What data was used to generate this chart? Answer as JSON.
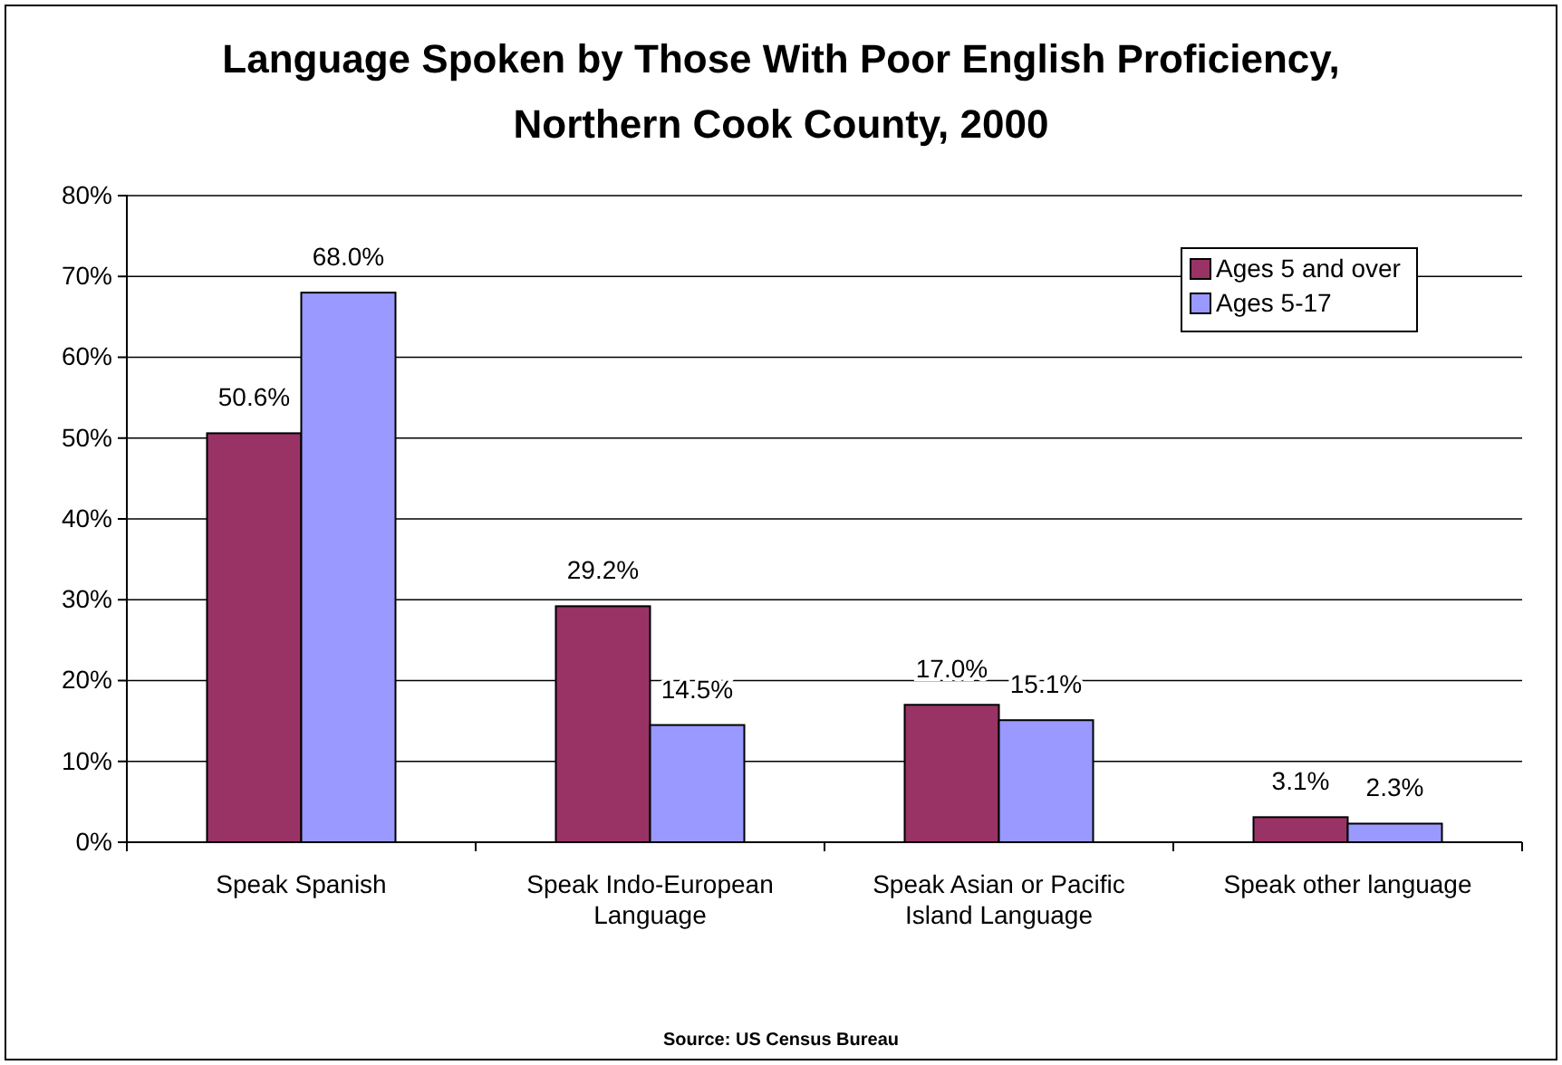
{
  "chart_data": {
    "type": "bar",
    "title": "Language Spoken by Those With Poor English Proficiency, Northern Cook County, 2000",
    "categories": [
      "Speak Spanish",
      "Speak Indo-European Language",
      "Speak Asian or Pacific Island Language",
      "Speak other language"
    ],
    "series": [
      {
        "name": "Ages 5 and over",
        "color": "#993366",
        "values": [
          50.6,
          29.2,
          17.0,
          3.1
        ],
        "value_labels": [
          "50.6%",
          "29.2%",
          "17.0%",
          "3.1%"
        ]
      },
      {
        "name": "Ages 5-17",
        "color": "#9999ff",
        "values": [
          68.0,
          14.5,
          15.1,
          2.3
        ],
        "value_labels": [
          "68.0%",
          "14.5%",
          "15.1%",
          "2.3%"
        ]
      }
    ],
    "ylim": [
      0,
      80
    ],
    "yticks": [
      {
        "value": 0,
        "label": "0%"
      },
      {
        "value": 10,
        "label": "10%"
      },
      {
        "value": 20,
        "label": "20%"
      },
      {
        "value": 30,
        "label": "30%"
      },
      {
        "value": 40,
        "label": "40%"
      },
      {
        "value": 50,
        "label": "50%"
      },
      {
        "value": 60,
        "label": "60%"
      },
      {
        "value": 70,
        "label": "70%"
      },
      {
        "value": 80,
        "label": "80%"
      }
    ],
    "grid": "y",
    "legend": "top right",
    "annotations": [
      "Source:  US Census Bureau"
    ]
  }
}
